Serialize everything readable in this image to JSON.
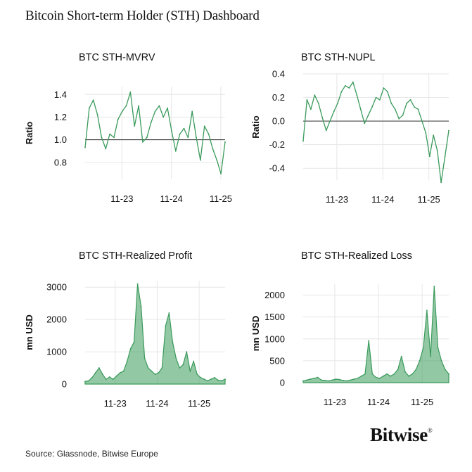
{
  "header": {
    "title": "Bitcoin Short-term Holder (STH) Dashboard"
  },
  "footer": {
    "source": "Source: Glassnode, Bitwise Europe",
    "brand": "Bitwise",
    "brand_mark": "®"
  },
  "colors": {
    "series": "#3a9a5b",
    "reference": "#333333",
    "grid": "#e6e6e6"
  },
  "chart_data": [
    {
      "type": "line",
      "title": "BTC STH-MVRV",
      "ylabel": "Ratio",
      "ylim": [
        0.65,
        1.47
      ],
      "yticks": [
        0.8,
        1.0,
        1.2,
        1.4
      ],
      "ytick_labels": [
        "0.8",
        "1.0",
        "1.2",
        "1.4"
      ],
      "reference_line": 1.0,
      "xlim": [
        0,
        34
      ],
      "xticks": [
        11,
        23,
        35
      ],
      "xtick_labels": [
        "11-23",
        "11-24",
        "11-25"
      ],
      "x": [
        0,
        1,
        2,
        3,
        4,
        5,
        6,
        7,
        8,
        9,
        10,
        11,
        12,
        13,
        14,
        15,
        16,
        17,
        18,
        19,
        20,
        21,
        22,
        23,
        24,
        25,
        26,
        27,
        28,
        29,
        30,
        31,
        32,
        33,
        34
      ],
      "series": [
        {
          "values": [
            0.93,
            1.28,
            1.35,
            1.22,
            1.02,
            0.92,
            1.05,
            1.02,
            1.18,
            1.25,
            1.3,
            1.42,
            1.12,
            1.3,
            0.98,
            1.02,
            1.15,
            1.25,
            1.3,
            1.2,
            1.28,
            1.08,
            0.9,
            1.05,
            1.1,
            1.02,
            1.25,
            1.02,
            0.82,
            1.12,
            1.05,
            0.92,
            0.82,
            0.7,
            0.98
          ]
        }
      ]
    },
    {
      "type": "line",
      "title": "BTC STH-NUPL",
      "ylabel": "Ratio",
      "ylim": [
        -0.5,
        0.4
      ],
      "yticks": [
        -0.4,
        -0.2,
        0.0,
        0.2,
        0.4
      ],
      "ytick_labels": [
        "-0.4",
        "-0.2",
        "0.0",
        "0.2",
        "0.4"
      ],
      "reference_line": 0.0,
      "xlim": [
        0,
        38
      ],
      "xticks": [
        11,
        23,
        35
      ],
      "xtick_labels": [
        "11-23",
        "11-24",
        "11-25"
      ],
      "x": [
        0,
        1,
        2,
        3,
        4,
        5,
        6,
        7,
        8,
        9,
        10,
        11,
        12,
        13,
        14,
        15,
        16,
        17,
        18,
        19,
        20,
        21,
        22,
        23,
        24,
        25,
        26,
        27,
        28,
        29,
        30,
        31,
        32,
        33,
        34,
        35,
        36,
        37,
        38
      ],
      "series": [
        {
          "values": [
            -0.17,
            0.18,
            0.1,
            0.22,
            0.15,
            0.03,
            -0.08,
            0.0,
            0.08,
            0.15,
            0.25,
            0.3,
            0.28,
            0.33,
            0.22,
            0.1,
            -0.02,
            0.05,
            0.12,
            0.2,
            0.18,
            0.28,
            0.25,
            0.15,
            0.1,
            0.02,
            0.05,
            0.15,
            0.18,
            0.12,
            0.1,
            0.0,
            -0.1,
            -0.3,
            -0.12,
            -0.25,
            -0.52,
            -0.3,
            -0.08
          ]
        }
      ]
    },
    {
      "type": "area",
      "title": "BTC STH-Realized Profit",
      "ylabel": "mn USD",
      "ylim": [
        0,
        3200
      ],
      "yticks": [
        0,
        1000,
        2000,
        3000
      ],
      "ytick_labels": [
        "0",
        "1000",
        "2000",
        "3000"
      ],
      "xlim": [
        0,
        40
      ],
      "xticks": [
        11,
        23,
        35
      ],
      "xtick_labels": [
        "11-23",
        "11-24",
        "11-25"
      ],
      "x": [
        0,
        1,
        2,
        3,
        4,
        5,
        6,
        7,
        8,
        9,
        10,
        11,
        12,
        13,
        14,
        15,
        16,
        17,
        18,
        19,
        20,
        21,
        22,
        23,
        24,
        25,
        26,
        27,
        28,
        29,
        30,
        31,
        32,
        33,
        34,
        35,
        36,
        37,
        38,
        39,
        40
      ],
      "series": [
        {
          "values": [
            80,
            100,
            200,
            350,
            500,
            300,
            150,
            220,
            150,
            250,
            350,
            400,
            700,
            1100,
            1300,
            3100,
            2400,
            800,
            500,
            400,
            300,
            350,
            500,
            1800,
            2200,
            1300,
            800,
            500,
            600,
            1000,
            400,
            700,
            300,
            200,
            150,
            100,
            150,
            200,
            120,
            100,
            150
          ]
        }
      ]
    },
    {
      "type": "area",
      "title": "BTC STH-Realized Loss",
      "ylabel": "mn USD",
      "ylim": [
        0,
        2250
      ],
      "yticks": [
        0,
        500,
        1000,
        1500,
        2000
      ],
      "ytick_labels": [
        "0",
        "500",
        "1000",
        "1500",
        "2000"
      ],
      "xlim": [
        0,
        40
      ],
      "xticks": [
        11,
        23,
        35
      ],
      "xtick_labels": [
        "11-23",
        "11-24",
        "11-25"
      ],
      "x": [
        0,
        1,
        2,
        3,
        4,
        5,
        6,
        7,
        8,
        9,
        10,
        11,
        12,
        13,
        14,
        15,
        16,
        17,
        18,
        19,
        20,
        21,
        22,
        23,
        24,
        25,
        26,
        27,
        28,
        29,
        30,
        31,
        32,
        33,
        34,
        35,
        36,
        37,
        38,
        39,
        40
      ],
      "series": [
        {
          "values": [
            40,
            60,
            80,
            100,
            120,
            60,
            50,
            40,
            60,
            80,
            70,
            50,
            40,
            60,
            80,
            100,
            150,
            200,
            960,
            200,
            120,
            100,
            150,
            200,
            150,
            200,
            300,
            600,
            250,
            150,
            200,
            300,
            500,
            800,
            1650,
            600,
            2200,
            800,
            500,
            300,
            200
          ]
        }
      ]
    }
  ]
}
